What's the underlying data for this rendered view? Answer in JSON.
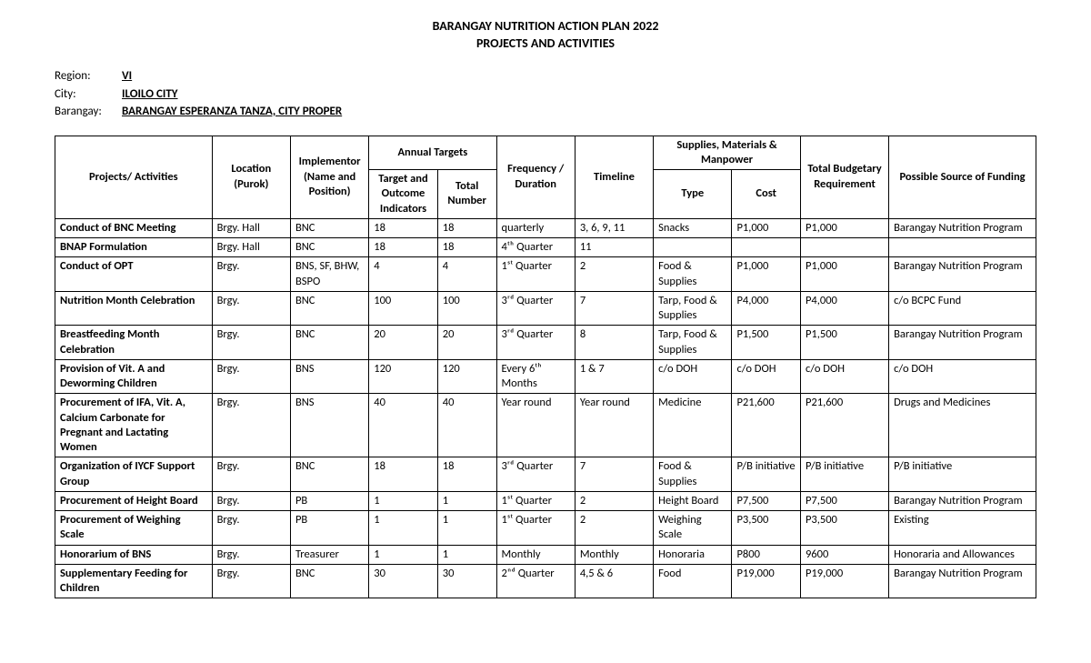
{
  "title": "BARANGAY NUTRITION ACTION PLAN 2022",
  "subtitle": "PROJECTS AND ACTIVITIES",
  "meta": {
    "region_label": "Region:",
    "region_value": "VI",
    "city_label": "City:",
    "city_value": "ILOILO CITY",
    "barangay_label": "Barangay:",
    "barangay_value": "BARANGAY ESPERANZA TANZA, CITY PROPER"
  },
  "headers": {
    "projects": "Projects/ Activities",
    "location": "Location (Purok)",
    "implementor": "Implementor (Name and Position)",
    "annual_targets": "Annual Targets",
    "target_indicators": "Target and Outcome Indicators",
    "total_number": "Total Number",
    "frequency": "Frequency / Duration",
    "timeline": "Timeline",
    "supplies": "Supplies, Materials & Manpower",
    "type": "Type",
    "cost": "Cost",
    "budget": "Total Budgetary Requirement",
    "funding": "Possible Source of Funding"
  },
  "rows": [
    {
      "activity": "Conduct of BNC Meeting",
      "location": "Brgy. Hall",
      "implementor": "BNC",
      "target": "18",
      "total": "18",
      "frequency": "quarterly",
      "timeline": "3, 6, 9, 11",
      "type": "Snacks",
      "cost": "P1,000",
      "budget": "P1,000",
      "funding": "Barangay Nutrition Program"
    },
    {
      "activity": "BNAP Formulation",
      "location": "Brgy. Hall",
      "implementor": "BNC",
      "target": "18",
      "total": "18",
      "frequency": "4ᵗʰ Quarter",
      "timeline": "11",
      "type": "",
      "cost": "",
      "budget": "",
      "funding": ""
    },
    {
      "activity": "Conduct of OPT",
      "location": "Brgy.",
      "implementor": "BNS, SF, BHW, BSPO",
      "target": "4",
      "total": "4",
      "frequency": "1ˢᵗ Quarter",
      "timeline": "2",
      "type": "Food & Supplies",
      "cost": "P1,000",
      "budget": "P1,000",
      "funding": "Barangay Nutrition Program"
    },
    {
      "activity": "Nutrition Month Celebration",
      "location": "Brgy.",
      "implementor": "BNC",
      "target": "100",
      "total": "100",
      "frequency": "3ʳᵈ Quarter",
      "timeline": "7",
      "type": "Tarp, Food & Supplies",
      "cost": "P4,000",
      "budget": "P4,000",
      "funding": "c/o BCPC Fund"
    },
    {
      "activity": "Breastfeeding Month Celebration",
      "location": "Brgy.",
      "implementor": "BNC",
      "target": "20",
      "total": "20",
      "frequency": "3ʳᵈ Quarter",
      "timeline": "8",
      "type": "Tarp, Food & Supplies",
      "cost": "P1,500",
      "budget": "P1,500",
      "funding": "Barangay Nutrition Program"
    },
    {
      "activity": "Provision of Vit. A and Deworming Children",
      "location": "Brgy.",
      "implementor": "BNS",
      "target": "120",
      "total": "120",
      "frequency": "Every 6ᵗʰ Months",
      "timeline": "1 & 7",
      "type": "c/o DOH",
      "cost": "c/o DOH",
      "budget": "c/o DOH",
      "funding": "c/o DOH"
    },
    {
      "activity": "Procurement of IFA, Vit. A, Calcium Carbonate for Pregnant and Lactating Women",
      "location": "Brgy.",
      "implementor": "BNS",
      "target": "40",
      "total": "40",
      "frequency": "Year round",
      "timeline": "Year round",
      "type": "Medicine",
      "cost": "P21,600",
      "budget": "P21,600",
      "funding": "Drugs and Medicines"
    },
    {
      "activity": "Organization of IYCF Support Group",
      "location": "Brgy.",
      "implementor": "BNC",
      "target": "18",
      "total": "18",
      "frequency": "3ʳᵈ Quarter",
      "timeline": "7",
      "type": "Food & Supplies",
      "cost": "P/B initiative",
      "budget": "P/B initiative",
      "funding": "P/B initiative"
    },
    {
      "activity": "Procurement of Height Board",
      "location": "Brgy.",
      "implementor": "PB",
      "target": "1",
      "total": "1",
      "frequency": "1ˢᵗ Quarter",
      "timeline": "2",
      "type": "Height Board",
      "cost": "P7,500",
      "budget": "P7,500",
      "funding": "Barangay Nutrition Program"
    },
    {
      "activity": "Procurement of Weighing Scale",
      "location": "Brgy.",
      "implementor": "PB",
      "target": "1",
      "total": "1",
      "frequency": "1ˢᵗ Quarter",
      "timeline": "2",
      "type": "Weighing Scale",
      "cost": "P3,500",
      "budget": "P3,500",
      "funding": "Existing"
    },
    {
      "activity": "Honorarium of BNS",
      "location": "Brgy.",
      "implementor": "Treasurer",
      "target": "1",
      "total": "1",
      "frequency": "Monthly",
      "timeline": "Monthly",
      "type": "Honoraria",
      "cost": "P800",
      "budget": "9600",
      "funding": "Honoraria and Allowances"
    },
    {
      "activity": "Supplementary Feeding for Children",
      "location": "Brgy.",
      "implementor": "BNC",
      "target": "30",
      "total": "30",
      "frequency": "2ⁿᵈ  Quarter",
      "timeline": "4,5 & 6",
      "type": "Food",
      "cost": "P19,000",
      "budget": "P19,000",
      "funding": "Barangay Nutrition Program"
    }
  ],
  "col_widths": [
    "16%",
    "8%",
    "8%",
    "7%",
    "6%",
    "8%",
    "8%",
    "8%",
    "7%",
    "9%",
    "15%"
  ]
}
